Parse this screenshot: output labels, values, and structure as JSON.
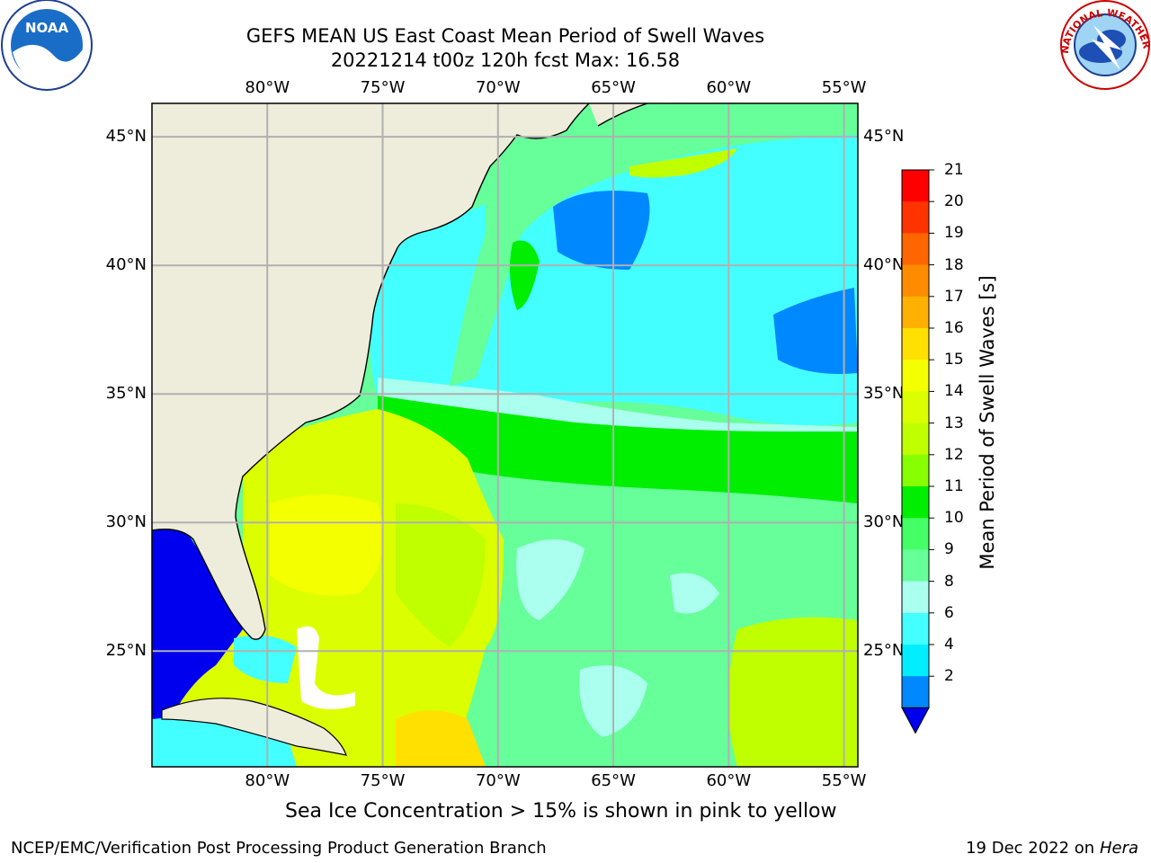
{
  "header": {
    "title_line1": "GEFS MEAN US East Coast Mean Period of Swell Waves",
    "title_line2": "20221214 t00z 120h fcst   Max: 16.58"
  },
  "logos": {
    "left": {
      "name": "noaa-logo",
      "text": "NOAA"
    },
    "right": {
      "name": "nws-logo",
      "ring_text": "NATIONAL WEATHER SERVICE"
    }
  },
  "map": {
    "lon_labels": [
      "80°W",
      "75°W",
      "70°W",
      "65°W",
      "60°W",
      "55°W"
    ],
    "lat_labels": [
      "45°N",
      "40°N",
      "35°N",
      "30°N",
      "25°N"
    ],
    "lon_range": [
      -85,
      -54.4
    ],
    "lat_range": [
      20.5,
      46.3
    ],
    "land_color": "#eeeddc",
    "grid_color": "#b0b0b0"
  },
  "colorbar": {
    "label": "Mean Period of Swell Waves [s]",
    "ticks": [
      "21",
      "20",
      "19",
      "18",
      "17",
      "16",
      "15",
      "14",
      "13",
      "12",
      "11",
      "10",
      "9",
      "8",
      "6",
      "4",
      "2"
    ],
    "colors": [
      "#ff0000",
      "#ff3300",
      "#ff6600",
      "#ff8c00",
      "#ffb000",
      "#ffe000",
      "#f4ff00",
      "#dcff00",
      "#c0ff00",
      "#88ff00",
      "#00ee00",
      "#44ff66",
      "#66ff99",
      "#aaffee",
      "#44ffff",
      "#00eeff",
      "#0088ff"
    ],
    "under_color": "#0000ee"
  },
  "footer": {
    "note": "Sea Ice Concentration > 15% is shown in pink to yellow",
    "left": "NCEP/EMC/Verification Post Processing Product Generation Branch",
    "date": "19 Dec 2022 on",
    "system": "Hera"
  }
}
